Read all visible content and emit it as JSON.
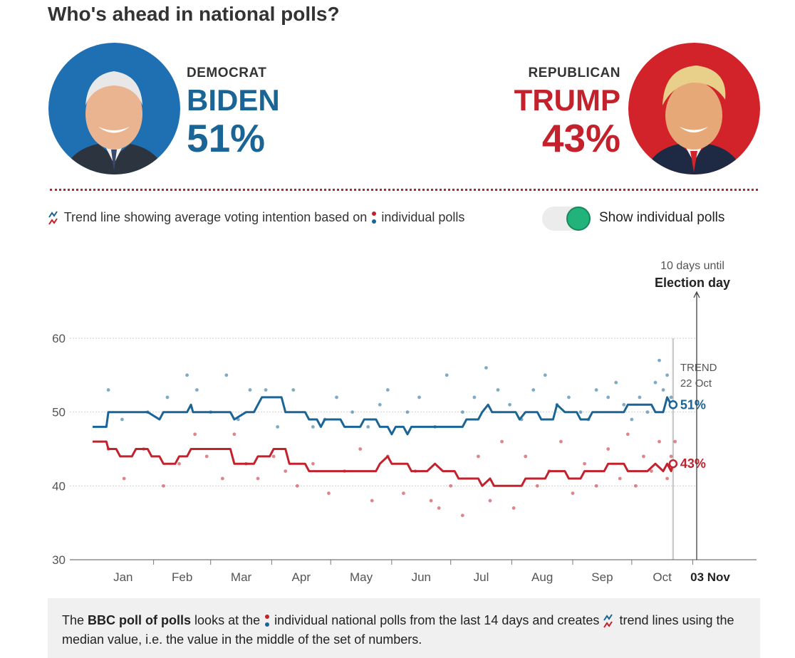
{
  "title": "Who's ahead in national polls?",
  "democrat": {
    "party": "DEMOCRAT",
    "name": "BIDEN",
    "pct": "51%"
  },
  "republican": {
    "party": "REPUBLICAN",
    "name": "TRUMP",
    "pct": "43%"
  },
  "legend": {
    "text_a": "Trend line showing average voting intention based on",
    "text_b": "individual polls"
  },
  "toggle": {
    "label": "Show individual polls",
    "on": true
  },
  "colors": {
    "blue": "#1a6496",
    "red": "#c3222c",
    "toggle": "#22b37a"
  },
  "chart_data": {
    "type": "line",
    "ylim": [
      30,
      60
    ],
    "yticks": [
      "60",
      "50",
      "40",
      "30"
    ],
    "ytick_values": [
      60,
      50,
      40,
      30
    ],
    "months": [
      "Jan",
      "Feb",
      "Mar",
      "Apr",
      "May",
      "Jun",
      "Jul",
      "Aug",
      "Sep",
      "Oct"
    ],
    "election_label": "03 Nov",
    "election_note": {
      "line1": "10 days until",
      "line2": "Election day"
    },
    "trend_note": {
      "line1": "TREND",
      "line2": "22 Oct"
    },
    "x_range_days": [
      0,
      306
    ],
    "trend_day": 295,
    "election_day": 307,
    "series": [
      {
        "name": "Biden",
        "color": "#1a6496",
        "end_label": "51%",
        "trend": [
          [
            0,
            48
          ],
          [
            7,
            48
          ],
          [
            8,
            50
          ],
          [
            20,
            50
          ],
          [
            28,
            50
          ],
          [
            34,
            49
          ],
          [
            36,
            50
          ],
          [
            48,
            50
          ],
          [
            50,
            51
          ],
          [
            51,
            50
          ],
          [
            60,
            50
          ],
          [
            70,
            50
          ],
          [
            72,
            49
          ],
          [
            78,
            50
          ],
          [
            82,
            50
          ],
          [
            84,
            51
          ],
          [
            86,
            52
          ],
          [
            96,
            52
          ],
          [
            98,
            50
          ],
          [
            108,
            50
          ],
          [
            110,
            49
          ],
          [
            114,
            49
          ],
          [
            116,
            48
          ],
          [
            118,
            49
          ],
          [
            126,
            49
          ],
          [
            128,
            48
          ],
          [
            136,
            48
          ],
          [
            138,
            49
          ],
          [
            144,
            49
          ],
          [
            146,
            48
          ],
          [
            150,
            48
          ],
          [
            152,
            47
          ],
          [
            154,
            48
          ],
          [
            158,
            48
          ],
          [
            160,
            47
          ],
          [
            162,
            48
          ],
          [
            172,
            48
          ],
          [
            184,
            48
          ],
          [
            188,
            48
          ],
          [
            190,
            49
          ],
          [
            196,
            49
          ],
          [
            198,
            50
          ],
          [
            201,
            51
          ],
          [
            203,
            50
          ],
          [
            215,
            50
          ],
          [
            217,
            49
          ],
          [
            220,
            50
          ],
          [
            226,
            50
          ],
          [
            228,
            49
          ],
          [
            234,
            49
          ],
          [
            236,
            51
          ],
          [
            240,
            50
          ],
          [
            246,
            50
          ],
          [
            248,
            49
          ],
          [
            252,
            49
          ],
          [
            254,
            50
          ],
          [
            264,
            50
          ],
          [
            270,
            50
          ],
          [
            272,
            51
          ],
          [
            278,
            51
          ],
          [
            284,
            51
          ],
          [
            286,
            50
          ],
          [
            290,
            50
          ],
          [
            292,
            52
          ],
          [
            294,
            51
          ],
          [
            295,
            51
          ]
        ],
        "polls": [
          [
            8,
            53
          ],
          [
            15,
            49
          ],
          [
            28,
            50
          ],
          [
            38,
            52
          ],
          [
            48,
            55
          ],
          [
            53,
            53
          ],
          [
            60,
            50
          ],
          [
            68,
            55
          ],
          [
            74,
            49
          ],
          [
            80,
            53
          ],
          [
            88,
            53
          ],
          [
            94,
            48
          ],
          [
            102,
            53
          ],
          [
            112,
            48
          ],
          [
            118,
            49
          ],
          [
            124,
            52
          ],
          [
            132,
            50
          ],
          [
            140,
            48
          ],
          [
            146,
            51
          ],
          [
            150,
            53
          ],
          [
            160,
            50
          ],
          [
            166,
            52
          ],
          [
            174,
            48
          ],
          [
            180,
            55
          ],
          [
            188,
            50
          ],
          [
            194,
            52
          ],
          [
            200,
            56
          ],
          [
            206,
            53
          ],
          [
            212,
            51
          ],
          [
            218,
            49
          ],
          [
            224,
            53
          ],
          [
            230,
            55
          ],
          [
            236,
            51
          ],
          [
            242,
            52
          ],
          [
            248,
            50
          ],
          [
            252,
            49
          ],
          [
            256,
            53
          ],
          [
            262,
            52
          ],
          [
            266,
            54
          ],
          [
            270,
            51
          ],
          [
            274,
            49
          ],
          [
            278,
            52
          ],
          [
            282,
            50
          ],
          [
            286,
            54
          ],
          [
            288,
            57
          ],
          [
            290,
            53
          ],
          [
            292,
            55
          ],
          [
            294,
            52
          ],
          [
            296,
            51
          ]
        ]
      },
      {
        "name": "Trump",
        "color": "#c3222c",
        "end_label": "43%",
        "trend": [
          [
            0,
            46
          ],
          [
            7,
            46
          ],
          [
            8,
            45
          ],
          [
            12,
            45
          ],
          [
            14,
            44
          ],
          [
            20,
            44
          ],
          [
            22,
            45
          ],
          [
            28,
            45
          ],
          [
            30,
            44
          ],
          [
            34,
            44
          ],
          [
            36,
            43
          ],
          [
            42,
            43
          ],
          [
            44,
            44
          ],
          [
            48,
            44
          ],
          [
            50,
            45
          ],
          [
            60,
            45
          ],
          [
            70,
            45
          ],
          [
            72,
            43
          ],
          [
            78,
            43
          ],
          [
            82,
            43
          ],
          [
            84,
            44
          ],
          [
            90,
            44
          ],
          [
            92,
            45
          ],
          [
            98,
            45
          ],
          [
            100,
            43
          ],
          [
            108,
            43
          ],
          [
            110,
            42
          ],
          [
            118,
            42
          ],
          [
            128,
            42
          ],
          [
            136,
            42
          ],
          [
            144,
            42
          ],
          [
            146,
            43
          ],
          [
            150,
            44
          ],
          [
            152,
            43
          ],
          [
            160,
            43
          ],
          [
            162,
            42
          ],
          [
            170,
            42
          ],
          [
            174,
            43
          ],
          [
            178,
            42
          ],
          [
            184,
            42
          ],
          [
            186,
            41
          ],
          [
            196,
            41
          ],
          [
            198,
            40
          ],
          [
            202,
            41
          ],
          [
            204,
            40
          ],
          [
            218,
            40
          ],
          [
            220,
            41
          ],
          [
            230,
            41
          ],
          [
            232,
            42
          ],
          [
            240,
            42
          ],
          [
            242,
            41
          ],
          [
            248,
            41
          ],
          [
            250,
            42
          ],
          [
            260,
            42
          ],
          [
            262,
            43
          ],
          [
            270,
            43
          ],
          [
            272,
            42
          ],
          [
            282,
            42
          ],
          [
            286,
            43
          ],
          [
            290,
            42
          ],
          [
            292,
            43
          ],
          [
            294,
            42
          ],
          [
            295,
            43
          ]
        ],
        "polls": [
          [
            8,
            45
          ],
          [
            16,
            41
          ],
          [
            26,
            45
          ],
          [
            36,
            40
          ],
          [
            44,
            43
          ],
          [
            52,
            47
          ],
          [
            58,
            44
          ],
          [
            66,
            41
          ],
          [
            72,
            47
          ],
          [
            78,
            43
          ],
          [
            84,
            41
          ],
          [
            92,
            44
          ],
          [
            98,
            42
          ],
          [
            104,
            40
          ],
          [
            112,
            43
          ],
          [
            120,
            39
          ],
          [
            128,
            42
          ],
          [
            136,
            45
          ],
          [
            142,
            38
          ],
          [
            150,
            44
          ],
          [
            158,
            39
          ],
          [
            164,
            42
          ],
          [
            172,
            38
          ],
          [
            176,
            37
          ],
          [
            182,
            40
          ],
          [
            188,
            36
          ],
          [
            196,
            44
          ],
          [
            202,
            38
          ],
          [
            208,
            46
          ],
          [
            214,
            37
          ],
          [
            220,
            44
          ],
          [
            226,
            40
          ],
          [
            232,
            42
          ],
          [
            238,
            46
          ],
          [
            244,
            39
          ],
          [
            250,
            43
          ],
          [
            256,
            40
          ],
          [
            262,
            45
          ],
          [
            268,
            41
          ],
          [
            272,
            47
          ],
          [
            276,
            40
          ],
          [
            280,
            44
          ],
          [
            284,
            42
          ],
          [
            288,
            46
          ],
          [
            292,
            41
          ],
          [
            294,
            44
          ],
          [
            296,
            46
          ]
        ]
      }
    ]
  },
  "footer": {
    "text_a": "The",
    "text_b": "BBC poll of polls",
    "text_c": "looks at the",
    "text_d": "individual national polls from the last 14 days and creates",
    "text_e": "trend lines using the median value, i.e. the value in the middle of the set of numbers."
  }
}
